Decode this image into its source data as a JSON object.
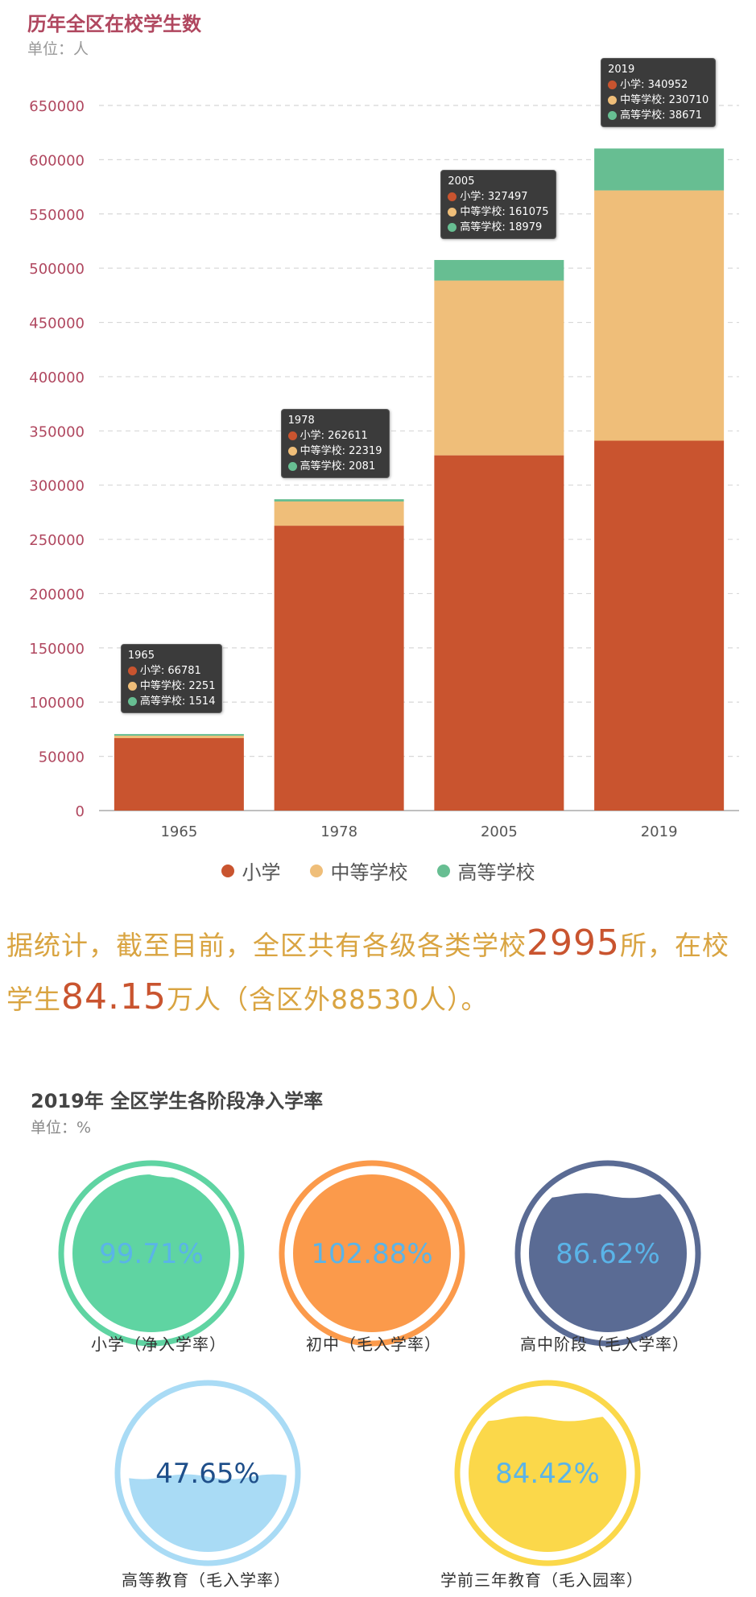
{
  "chart_data": [
    {
      "type": "bar",
      "stacked": true,
      "title": "历年全区在校学生数",
      "unit": "单位：人",
      "categories": [
        "1965",
        "1978",
        "2005",
        "2019"
      ],
      "series": [
        {
          "name": "小学",
          "color": "#c9542f",
          "values": [
            66781,
            262611,
            327497,
            340952
          ]
        },
        {
          "name": "中等学校",
          "color": "#efbe79",
          "values": [
            2251,
            22319,
            161075,
            230710
          ]
        },
        {
          "name": "高等学校",
          "color": "#67be92",
          "values": [
            1514,
            2081,
            18979,
            38671
          ]
        }
      ],
      "ylim": [
        0,
        650000
      ],
      "yticks": [
        "0",
        "50000",
        "100000",
        "150000",
        "200000",
        "250000",
        "300000",
        "350000",
        "400000",
        "450000",
        "500000",
        "550000",
        "600000",
        "650000"
      ],
      "grid": true,
      "legend": "bottom"
    },
    {
      "type": "gauge",
      "title": "2019年 全区学生各阶段净入学率",
      "unit": "单位：%",
      "items": [
        {
          "label": "小学（净入学率）",
          "value_text": "99.71%",
          "value": 99.71,
          "color": "#5fd4a2",
          "text_color": "#5ab4e8"
        },
        {
          "label": "初中（毛入学率）",
          "value_text": "102.88%",
          "value": 102.88,
          "color": "#fb9a4b",
          "text_color": "#5ab4e8"
        },
        {
          "label": "高中阶段（毛入学率）",
          "value_text": "86.62%",
          "value": 86.62,
          "color": "#5a6b94",
          "text_color": "#5ab4e8"
        },
        {
          "label": "高等教育（毛入学率）",
          "value_text": "47.65%",
          "value": 47.65,
          "color": "#a9dbf5",
          "text_color": "#1f4f8a"
        },
        {
          "label": "学前三年教育（毛入园率）",
          "value_text": "84.42%",
          "value": 84.42,
          "color": "#fbd84a",
          "text_color": "#5ab4e8"
        }
      ]
    }
  ],
  "stats_text": {
    "part1": "据统计，截至目前，全区共有各级各类学校",
    "schools": "2995",
    "part2": "所，在校学生",
    "students": "84.15",
    "part3": "万人（含区外88530人）。"
  }
}
